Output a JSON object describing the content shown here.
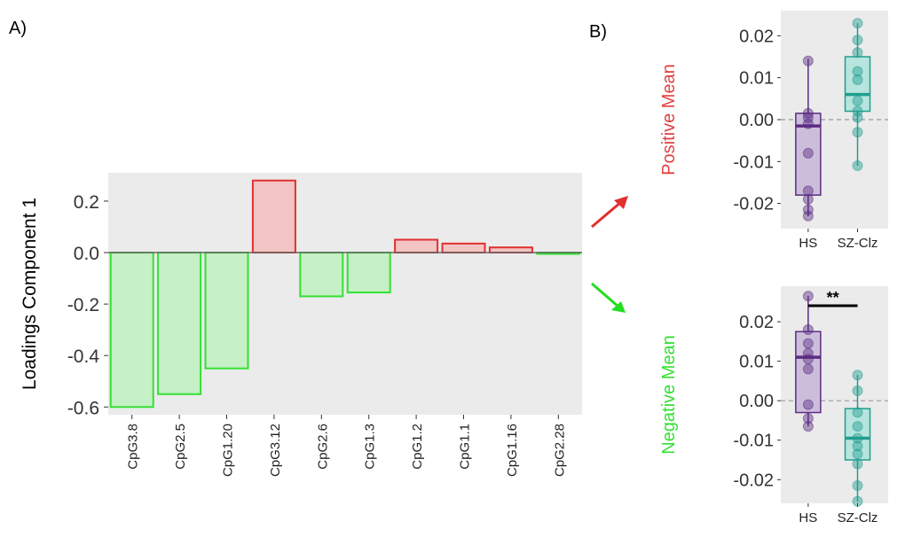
{
  "panels": {
    "a_label": "A)",
    "b_label": "B)"
  },
  "colors": {
    "positive_stroke": "#e03030",
    "positive_fill": "#f2c4c4",
    "negative_stroke": "#33e033",
    "negative_fill": "#c6f0c6",
    "panel_bg": "#ebebeb",
    "hs": "#5b2c83",
    "hs_fill": "#cbbedb",
    "sz": "#1f9e8e",
    "sz_fill": "#b8e4de",
    "positive_title": "#e04040",
    "negative_title": "#33e033",
    "arrow_up": "#e03030",
    "arrow_down": "#22dd22"
  },
  "chart_data": [
    {
      "type": "bar",
      "ylabel": "Loadings Component 1",
      "categories": [
        "CpG3.8",
        "CpG2.5",
        "CpG1.20",
        "CpG3.12",
        "CpG2.6",
        "CpG1.3",
        "CpG1.2",
        "CpG1.1",
        "CpG1.16",
        "CpG2.28"
      ],
      "values": [
        -0.6,
        -0.55,
        -0.45,
        0.28,
        -0.17,
        -0.155,
        0.05,
        0.035,
        0.02,
        -0.005
      ],
      "ylim": [
        -0.63,
        0.31
      ],
      "yticks": [
        0.2,
        0.0,
        -0.2,
        -0.4,
        -0.6
      ],
      "ytick_labels": [
        "0.2",
        "0.0",
        "-0.2",
        "-0.4",
        "-0.6"
      ],
      "grid": false
    },
    {
      "type": "box",
      "title": "Positive Mean",
      "categories": [
        "HS",
        "SZ-Clz"
      ],
      "ylim": [
        -0.026,
        0.026
      ],
      "yticks": [
        0.02,
        0.01,
        0.0,
        -0.01,
        -0.02
      ],
      "ytick_labels": [
        "0.02",
        "0.01",
        "0.00",
        "-0.01",
        "-0.02"
      ],
      "reference_line": 0.0,
      "boxes": [
        {
          "q1": -0.018,
          "median": -0.0015,
          "q3": 0.0015,
          "whisker_low": -0.023,
          "whisker_high": 0.0145,
          "points": [
            0.014,
            0.0015,
            0.0005,
            -0.001,
            -0.008,
            -0.017,
            -0.019,
            -0.0215,
            -0.023
          ]
        },
        {
          "q1": 0.002,
          "median": 0.006,
          "q3": 0.015,
          "whisker_low": -0.011,
          "whisker_high": 0.023,
          "points": [
            0.023,
            0.019,
            0.016,
            0.0115,
            0.0095,
            0.0045,
            0.002,
            0.0005,
            -0.003,
            -0.011
          ]
        }
      ],
      "annotation": ""
    },
    {
      "type": "box",
      "title": "Negative Mean",
      "categories": [
        "HS",
        "SZ-Clz"
      ],
      "ylim": [
        -0.026,
        0.029
      ],
      "yticks": [
        0.02,
        0.01,
        0.0,
        -0.01,
        -0.02
      ],
      "ytick_labels": [
        "0.02",
        "0.01",
        "0.00",
        "-0.01",
        "-0.02"
      ],
      "reference_line": 0.0,
      "boxes": [
        {
          "q1": -0.003,
          "median": 0.011,
          "q3": 0.0175,
          "whisker_low": -0.0065,
          "whisker_high": 0.0265,
          "points": [
            0.0265,
            0.018,
            0.0145,
            0.012,
            0.0105,
            0.008,
            -0.001,
            -0.0045,
            -0.0065
          ]
        },
        {
          "q1": -0.015,
          "median": -0.0095,
          "q3": -0.002,
          "whisker_low": -0.0255,
          "whisker_high": 0.0065,
          "points": [
            0.0065,
            0.0025,
            -0.003,
            -0.0065,
            -0.0095,
            -0.0115,
            -0.0135,
            -0.016,
            -0.0215,
            -0.0255
          ]
        }
      ],
      "annotation": "**"
    }
  ]
}
